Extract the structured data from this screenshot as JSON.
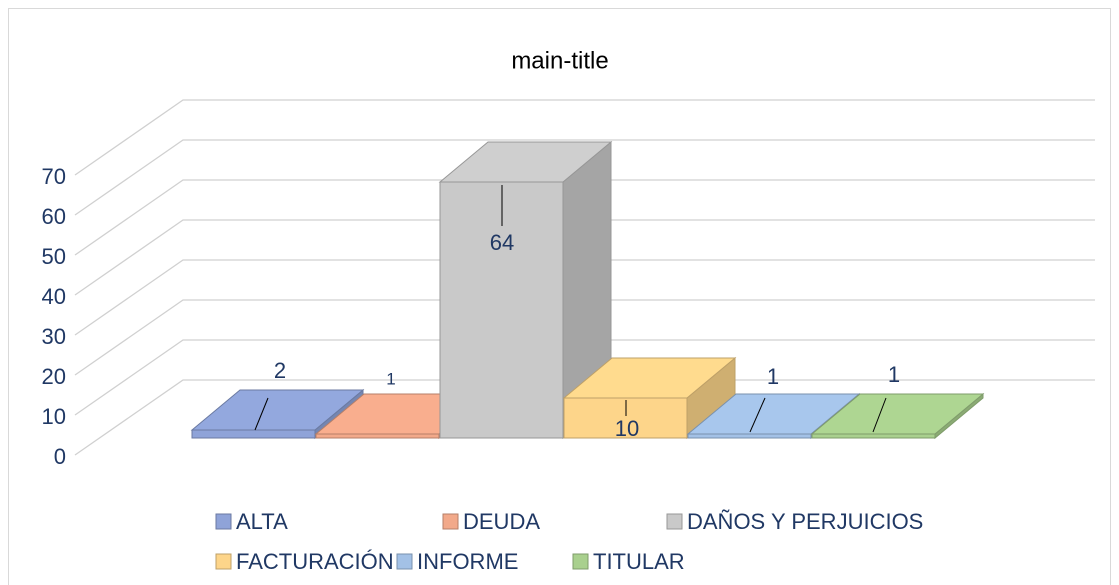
{
  "chart_data": {
    "type": "bar",
    "title": "main-title",
    "categories": [
      null
    ],
    "series": [
      {
        "name": "ALTA",
        "color": "#8fa3d8",
        "values": [
          2
        ]
      },
      {
        "name": "DEUDA",
        "color": "#f2a98a",
        "values": [
          1
        ]
      },
      {
        "name": "DAÑOS Y PERJUICIOS",
        "color": "#c9c9c9",
        "values": [
          64
        ]
      },
      {
        "name": "FACTURACIÓN",
        "color": "#fdd58a",
        "values": [
          10
        ]
      },
      {
        "name": "INFORME",
        "color": "#a3c1e6",
        "values": [
          1
        ]
      },
      {
        "name": "TITULAR",
        "color": "#a9d08e",
        "values": [
          1
        ]
      }
    ],
    "ylim": [
      0,
      70
    ],
    "yticks": [
      0,
      10,
      20,
      30,
      40,
      50,
      60,
      70
    ],
    "grid": true,
    "legend": "bottom"
  }
}
